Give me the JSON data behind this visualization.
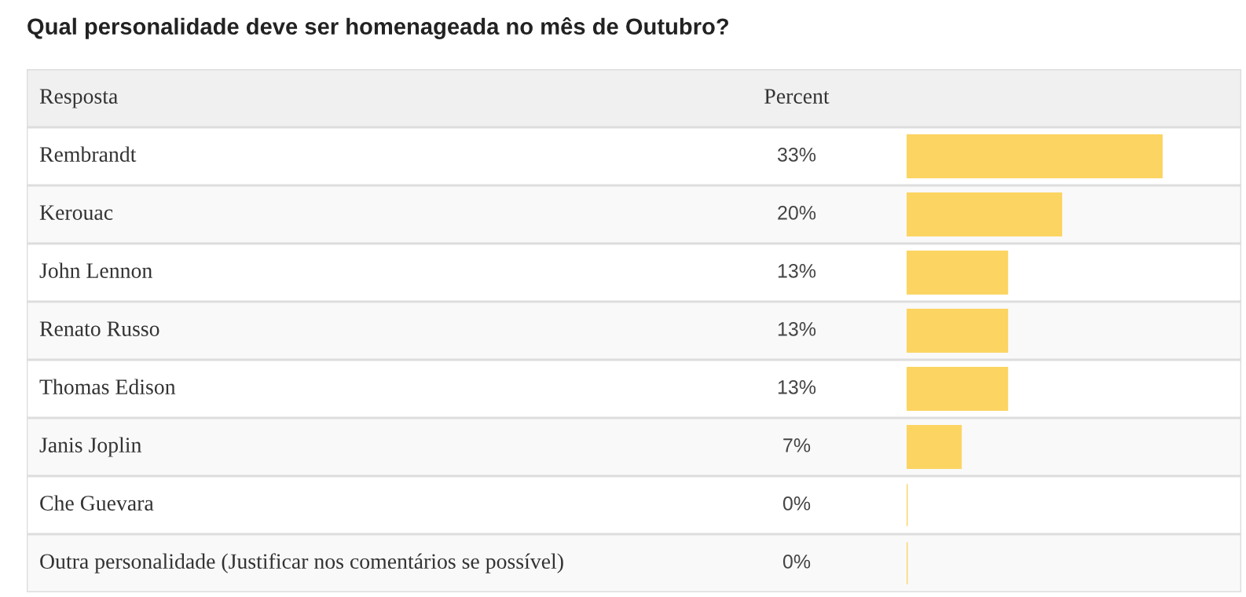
{
  "chart_data": {
    "type": "bar",
    "orientation": "horizontal",
    "title": "Qual personalidade deve ser homenageada no mês de Outubro?",
    "xlabel": "Percent",
    "ylabel": "Resposta",
    "categories": [
      "Rembrandt",
      "Kerouac",
      "John Lennon",
      "Renato Russo",
      "Thomas Edison",
      "Janis Joplin",
      "Che Guevara",
      "Outra personalidade (Justificar nos comentários se possível)"
    ],
    "values": [
      33,
      20,
      13,
      13,
      13,
      7,
      0,
      0
    ],
    "value_labels": [
      "33%",
      "20%",
      "13%",
      "13%",
      "13%",
      "7%",
      "0%",
      "0%"
    ],
    "color": "#fcd462"
  }
}
